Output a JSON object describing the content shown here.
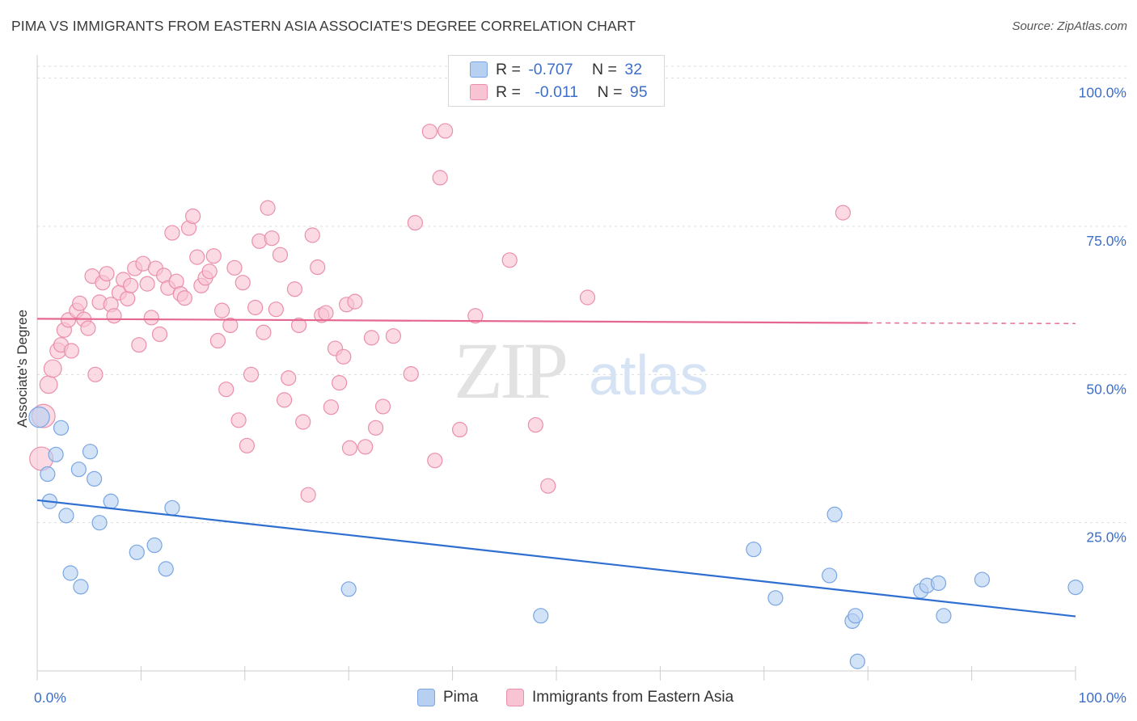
{
  "title": "PIMA VS IMMIGRANTS FROM EASTERN ASIA ASSOCIATE'S DEGREE CORRELATION CHART",
  "source": "Source: ZipAtlas.com",
  "watermark": {
    "zip": "ZIP",
    "atlas": "atlas"
  },
  "legend_top": {
    "rows": [
      {
        "r_label": "R =",
        "r_value": "-0.707",
        "n_label": "N =",
        "n_value": "32"
      },
      {
        "r_label": "R =",
        "r_value": "-0.011",
        "n_label": "N =",
        "n_value": "95"
      }
    ]
  },
  "legend_bottom": {
    "series1": "Pima",
    "series2": "Immigrants from Eastern Asia"
  },
  "colors": {
    "pima_fill": "#b7d0f2",
    "pima_stroke": "#7aa6e3",
    "pima_line": "#2f6fd1",
    "asia_fill": "#f8c3d3",
    "asia_stroke": "#eb8fab",
    "asia_line": "#e5668f",
    "tick_label": "#3d6fc9",
    "grid": "#dddddd"
  },
  "chart_data": {
    "type": "scatter",
    "title": "PIMA VS IMMIGRANTS FROM EASTERN ASIA ASSOCIATE'S DEGREE CORRELATION CHART",
    "xlabel": "",
    "ylabel": "Associate's Degree",
    "xlim": [
      0,
      100
    ],
    "ylim": [
      0,
      102
    ],
    "x_tick_labels": [
      "0.0%",
      "100.0%"
    ],
    "y_ticks": [
      25,
      50,
      75,
      100
    ],
    "y_tick_labels": [
      "25.0%",
      "50.0%",
      "75.0%",
      "100.0%"
    ],
    "grid": true,
    "legend_position": "top-center",
    "series": [
      {
        "name": "Pima",
        "stats": {
          "R": -0.707,
          "N": 32
        },
        "trend": {
          "x": [
            0,
            100
          ],
          "y": [
            28.8,
            9.2
          ]
        },
        "points": [
          [
            0.2,
            42.8,
            14
          ],
          [
            1.0,
            33.2,
            10
          ],
          [
            1.2,
            28.6,
            10
          ],
          [
            1.8,
            36.5,
            10
          ],
          [
            2.3,
            41.0,
            10
          ],
          [
            2.8,
            26.2,
            10
          ],
          [
            3.2,
            16.5,
            10
          ],
          [
            4.0,
            34.0,
            10
          ],
          [
            4.2,
            14.2,
            10
          ],
          [
            5.1,
            37.0,
            10
          ],
          [
            5.5,
            32.4,
            10
          ],
          [
            6.0,
            25.0,
            10
          ],
          [
            7.1,
            28.6,
            10
          ],
          [
            9.6,
            20.0,
            10
          ],
          [
            11.3,
            21.2,
            10
          ],
          [
            12.4,
            17.2,
            10
          ],
          [
            13.0,
            27.5,
            10
          ],
          [
            30.0,
            13.8,
            10
          ],
          [
            48.5,
            9.3,
            10
          ],
          [
            69.0,
            20.5,
            10
          ],
          [
            71.1,
            12.3,
            10
          ],
          [
            76.3,
            16.1,
            10
          ],
          [
            76.8,
            26.4,
            10
          ],
          [
            78.5,
            8.4,
            10
          ],
          [
            78.8,
            9.3,
            10
          ],
          [
            79.0,
            1.6,
            10
          ],
          [
            85.1,
            13.5,
            10
          ],
          [
            85.7,
            14.4,
            10
          ],
          [
            86.8,
            14.8,
            10
          ],
          [
            87.3,
            9.3,
            10
          ],
          [
            91.0,
            15.4,
            10
          ],
          [
            100.0,
            14.1,
            10
          ]
        ]
      },
      {
        "name": "Immigrants from Eastern Asia",
        "stats": {
          "R": -0.011,
          "N": 95
        },
        "trend": {
          "x": [
            0,
            80,
            100
          ],
          "y": [
            59.4,
            58.7,
            58.6
          ]
        },
        "points": [
          [
            0.4,
            35.8,
            16
          ],
          [
            0.6,
            43.0,
            16
          ],
          [
            1.1,
            48.3,
            12
          ],
          [
            1.5,
            51.0,
            12
          ],
          [
            2.0,
            54.0,
            11
          ],
          [
            2.3,
            55.0,
            10
          ],
          [
            2.6,
            57.5,
            10
          ],
          [
            3.0,
            59.2,
            10
          ],
          [
            3.3,
            54.0,
            10
          ],
          [
            3.8,
            60.8,
            10
          ],
          [
            4.1,
            62.0,
            10
          ],
          [
            4.5,
            59.3,
            10
          ],
          [
            4.9,
            57.8,
            10
          ],
          [
            5.3,
            66.6,
            10
          ],
          [
            5.6,
            50.0,
            10
          ],
          [
            6.0,
            62.2,
            10
          ],
          [
            6.3,
            65.5,
            10
          ],
          [
            6.7,
            67.0,
            10
          ],
          [
            7.1,
            61.8,
            10
          ],
          [
            7.4,
            59.9,
            10
          ],
          [
            7.9,
            63.8,
            10
          ],
          [
            8.3,
            66.0,
            10
          ],
          [
            8.7,
            62.8,
            10
          ],
          [
            9.0,
            65.0,
            10
          ],
          [
            9.4,
            67.9,
            10
          ],
          [
            9.8,
            55.0,
            10
          ],
          [
            10.2,
            68.7,
            10
          ],
          [
            10.6,
            65.3,
            10
          ],
          [
            11.0,
            59.6,
            10
          ],
          [
            11.4,
            67.9,
            10
          ],
          [
            11.8,
            56.8,
            10
          ],
          [
            12.2,
            66.7,
            10
          ],
          [
            12.6,
            64.6,
            10
          ],
          [
            13.0,
            73.9,
            10
          ],
          [
            13.4,
            65.7,
            10
          ],
          [
            13.8,
            63.6,
            10
          ],
          [
            14.2,
            62.9,
            10
          ],
          [
            14.6,
            74.7,
            10
          ],
          [
            15.0,
            76.7,
            10
          ],
          [
            15.4,
            69.8,
            10
          ],
          [
            15.8,
            65.0,
            10
          ],
          [
            16.2,
            66.3,
            10
          ],
          [
            16.6,
            67.4,
            10
          ],
          [
            17.0,
            70.0,
            10
          ],
          [
            17.4,
            55.7,
            10
          ],
          [
            17.8,
            60.8,
            10
          ],
          [
            18.2,
            47.5,
            10
          ],
          [
            18.6,
            58.3,
            10
          ],
          [
            19.0,
            68.0,
            10
          ],
          [
            19.4,
            42.3,
            10
          ],
          [
            19.8,
            65.5,
            10
          ],
          [
            20.2,
            38.0,
            10
          ],
          [
            20.6,
            50.0,
            10
          ],
          [
            21.0,
            61.3,
            10
          ],
          [
            21.4,
            72.5,
            10
          ],
          [
            21.8,
            57.1,
            10
          ],
          [
            22.2,
            78.1,
            10
          ],
          [
            22.6,
            73.0,
            10
          ],
          [
            23.0,
            61.0,
            10
          ],
          [
            23.4,
            70.2,
            10
          ],
          [
            23.8,
            45.7,
            10
          ],
          [
            24.2,
            49.4,
            10
          ],
          [
            24.8,
            64.4,
            10
          ],
          [
            25.2,
            58.3,
            10
          ],
          [
            25.6,
            42.0,
            10
          ],
          [
            26.1,
            29.7,
            10
          ],
          [
            26.5,
            73.5,
            10
          ],
          [
            27.0,
            68.1,
            10
          ],
          [
            27.4,
            60.0,
            10
          ],
          [
            27.8,
            60.4,
            10
          ],
          [
            28.3,
            44.5,
            10
          ],
          [
            28.7,
            54.4,
            10
          ],
          [
            29.1,
            48.6,
            10
          ],
          [
            29.5,
            53.0,
            10
          ],
          [
            29.8,
            61.8,
            10
          ],
          [
            30.1,
            37.6,
            10
          ],
          [
            30.6,
            62.3,
            10
          ],
          [
            31.6,
            37.8,
            10
          ],
          [
            32.2,
            56.2,
            10
          ],
          [
            32.6,
            41.0,
            10
          ],
          [
            33.3,
            44.6,
            10
          ],
          [
            34.3,
            56.5,
            10
          ],
          [
            36.0,
            50.1,
            10
          ],
          [
            36.4,
            75.6,
            10
          ],
          [
            37.8,
            91.0,
            10
          ],
          [
            38.3,
            35.5,
            10
          ],
          [
            38.8,
            83.2,
            10
          ],
          [
            39.3,
            91.1,
            10
          ],
          [
            40.7,
            40.7,
            10
          ],
          [
            42.2,
            59.9,
            10
          ],
          [
            45.5,
            69.3,
            10
          ],
          [
            48.0,
            41.5,
            10
          ],
          [
            49.2,
            31.2,
            10
          ],
          [
            53.0,
            63.0,
            10
          ],
          [
            77.6,
            77.3,
            10
          ]
        ]
      }
    ]
  }
}
